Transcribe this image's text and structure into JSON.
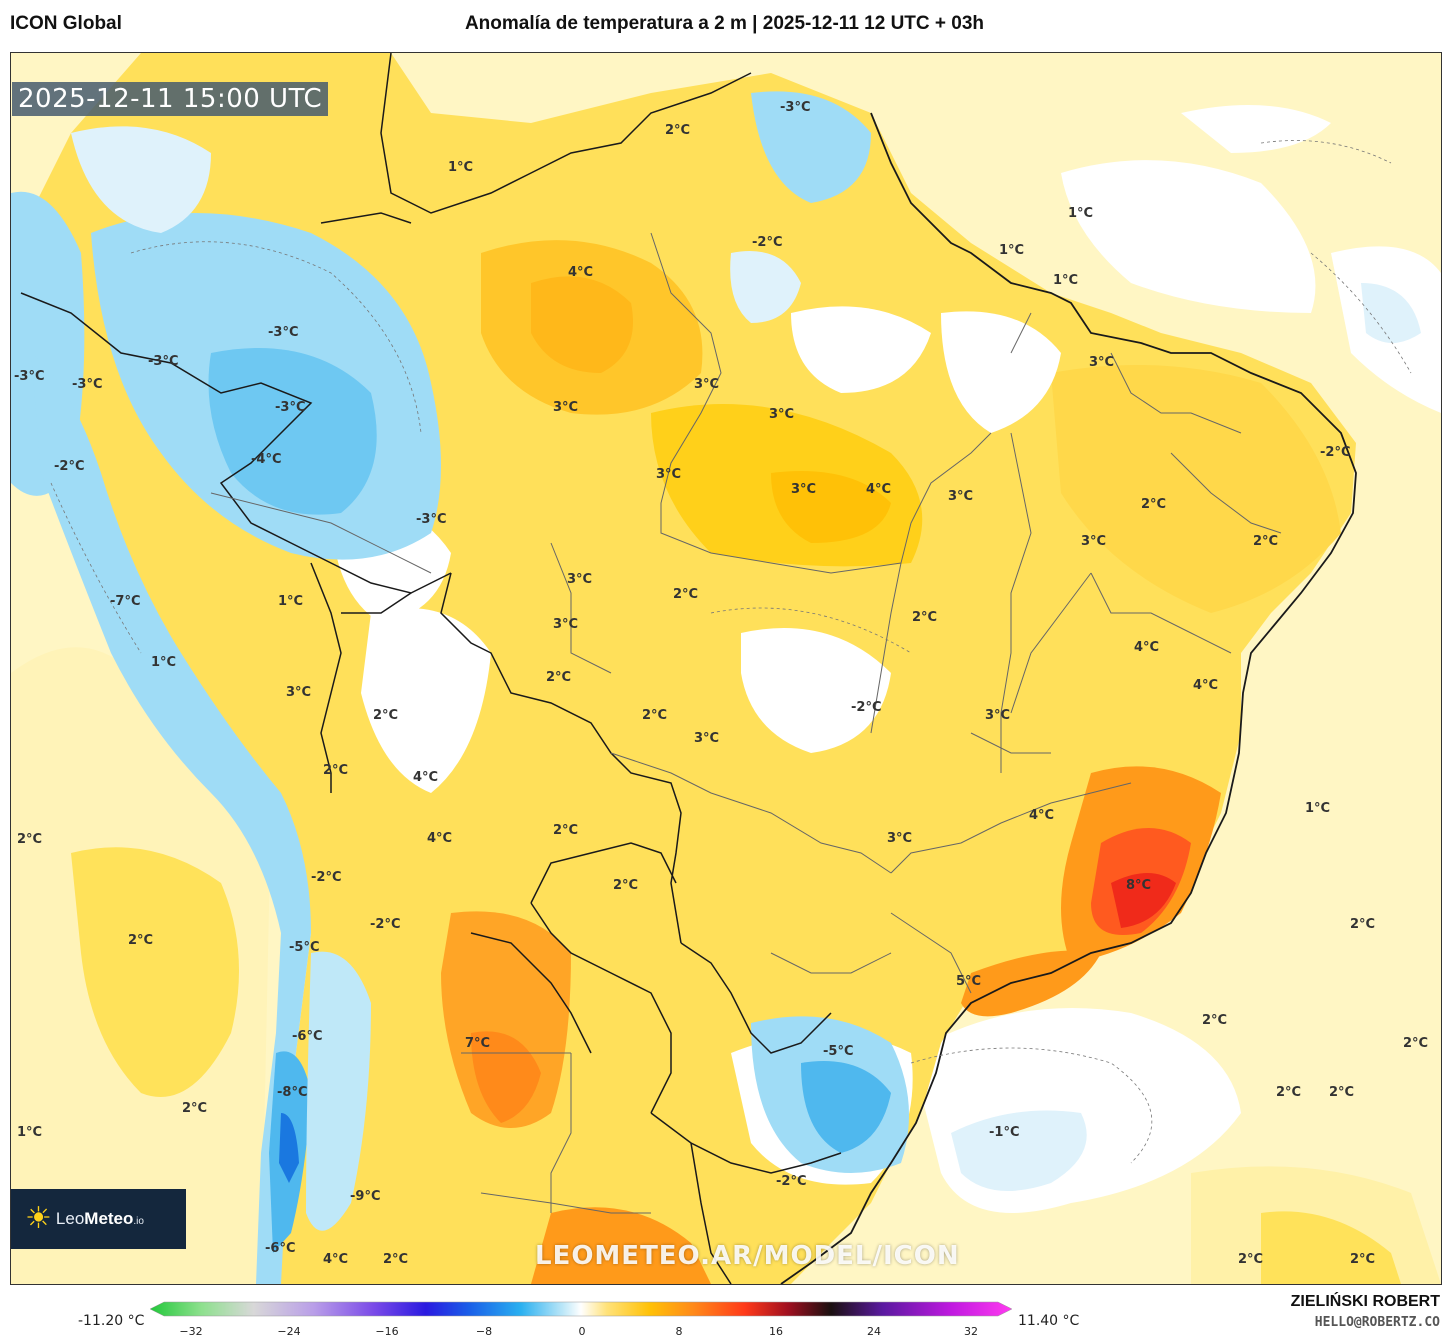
{
  "header": {
    "model": "ICON Global",
    "title": "Anomalía de temperatura a 2 m | 2025-12-11 12 UTC + 03h"
  },
  "map": {
    "valid_time": "2025-12-11 15:00 UTC",
    "watermark": "LEOMETEO.AR/MODEL/ICON",
    "logo": {
      "icon": "sun-icon",
      "text_light": "Leo",
      "text_bold": "Meteo",
      "suffix": ".io"
    },
    "colors": {
      "ocean_base": "#fff6c4",
      "warm_1": "#fff1a8",
      "warm_2": "#ffd83a",
      "warm_3": "#ffc107",
      "warm_4": "#ff9a1a",
      "warm_5": "#ff5a1f",
      "warm_6": "#f02a1a",
      "neutral": "#ffffff",
      "cool_1": "#dff2fb",
      "cool_2": "#9fdcf6",
      "cool_3": "#4fb8ee",
      "cool_4": "#1a78e0",
      "border": "#1a1a1a",
      "state_border": "#555555"
    },
    "labels": [
      {
        "text": "1°C"
      },
      {
        "text": "2°C"
      },
      {
        "text": "-3°C"
      },
      {
        "text": "-2°C"
      },
      {
        "text": "1°C"
      },
      {
        "text": "1°C"
      },
      {
        "text": "1°C"
      },
      {
        "text": "4°C"
      },
      {
        "text": "-3°C"
      },
      {
        "text": "-3°C"
      },
      {
        "text": "-3°C"
      },
      {
        "text": "-3°C"
      },
      {
        "text": "-3°C"
      },
      {
        "text": "3°C"
      },
      {
        "text": "3°C"
      },
      {
        "text": "3°C"
      },
      {
        "text": "3°C"
      },
      {
        "text": "-4°C"
      },
      {
        "text": "-2°C"
      },
      {
        "text": "3°C"
      },
      {
        "text": "3°C"
      },
      {
        "text": "4°C"
      },
      {
        "text": "3°C"
      },
      {
        "text": "2°C"
      },
      {
        "text": "-3°C"
      },
      {
        "text": "-2°C"
      },
      {
        "text": "2°C"
      },
      {
        "text": "3°C"
      },
      {
        "text": "3°C"
      },
      {
        "text": "-7°C"
      },
      {
        "text": "1°C"
      },
      {
        "text": "3°C"
      },
      {
        "text": "2°C"
      },
      {
        "text": "1°C"
      },
      {
        "text": "3°C"
      },
      {
        "text": "2°C"
      },
      {
        "text": "2°C"
      },
      {
        "text": "4°C"
      },
      {
        "text": "2°C"
      },
      {
        "text": "2°C"
      },
      {
        "text": "3°C"
      },
      {
        "text": "-2°C"
      },
      {
        "text": "3°C"
      },
      {
        "text": "4°C"
      },
      {
        "text": "2°C"
      },
      {
        "text": "2°C"
      },
      {
        "text": "4°C"
      },
      {
        "text": "2°C"
      },
      {
        "text": "3°C"
      },
      {
        "text": "4°C"
      },
      {
        "text": "1°C"
      },
      {
        "text": "4°C"
      },
      {
        "text": "-2°C"
      },
      {
        "text": "2°C"
      },
      {
        "text": "8°C"
      },
      {
        "text": "2°C"
      },
      {
        "text": "2°C"
      },
      {
        "text": "-5°C"
      },
      {
        "text": "5°C"
      },
      {
        "text": "-2°C"
      },
      {
        "text": "-6°C"
      },
      {
        "text": "7°C"
      },
      {
        "text": "-5°C"
      },
      {
        "text": "2°C"
      },
      {
        "text": "2°C"
      },
      {
        "text": "-8°C"
      },
      {
        "text": "2°C"
      },
      {
        "text": "-1°C"
      },
      {
        "text": "2°C"
      },
      {
        "text": "2°C"
      },
      {
        "text": "1°C"
      },
      {
        "text": "-2°C"
      },
      {
        "text": "-9°C"
      },
      {
        "text": "-6°C"
      },
      {
        "text": "4°C"
      },
      {
        "text": "2°C"
      },
      {
        "text": "2°C"
      },
      {
        "text": "2°C"
      }
    ]
  },
  "colorbar": {
    "min_label": "-11.20 °C",
    "max_label": "11.40 °C",
    "ticks": [
      "−32",
      "−24",
      "−16",
      "−8",
      "0",
      "8",
      "16",
      "24",
      "32"
    ],
    "stops": [
      "#22c83a",
      "#8ee08e",
      "#d8d8d8",
      "#b99ee8",
      "#7a4ae8",
      "#2a1ae0",
      "#1a5ee8",
      "#2ab0f0",
      "#bfe8f8",
      "#ffffff",
      "#ffe27a",
      "#ffc107",
      "#ff8a1a",
      "#ff3a1a",
      "#a01020",
      "#1a1010",
      "#5a1aa0",
      "#c01ae0",
      "#ff3af0"
    ]
  },
  "footer": {
    "author": "ZIELIŃSKI ROBERT",
    "email": "HELLO@ROBERTZ.CO"
  }
}
